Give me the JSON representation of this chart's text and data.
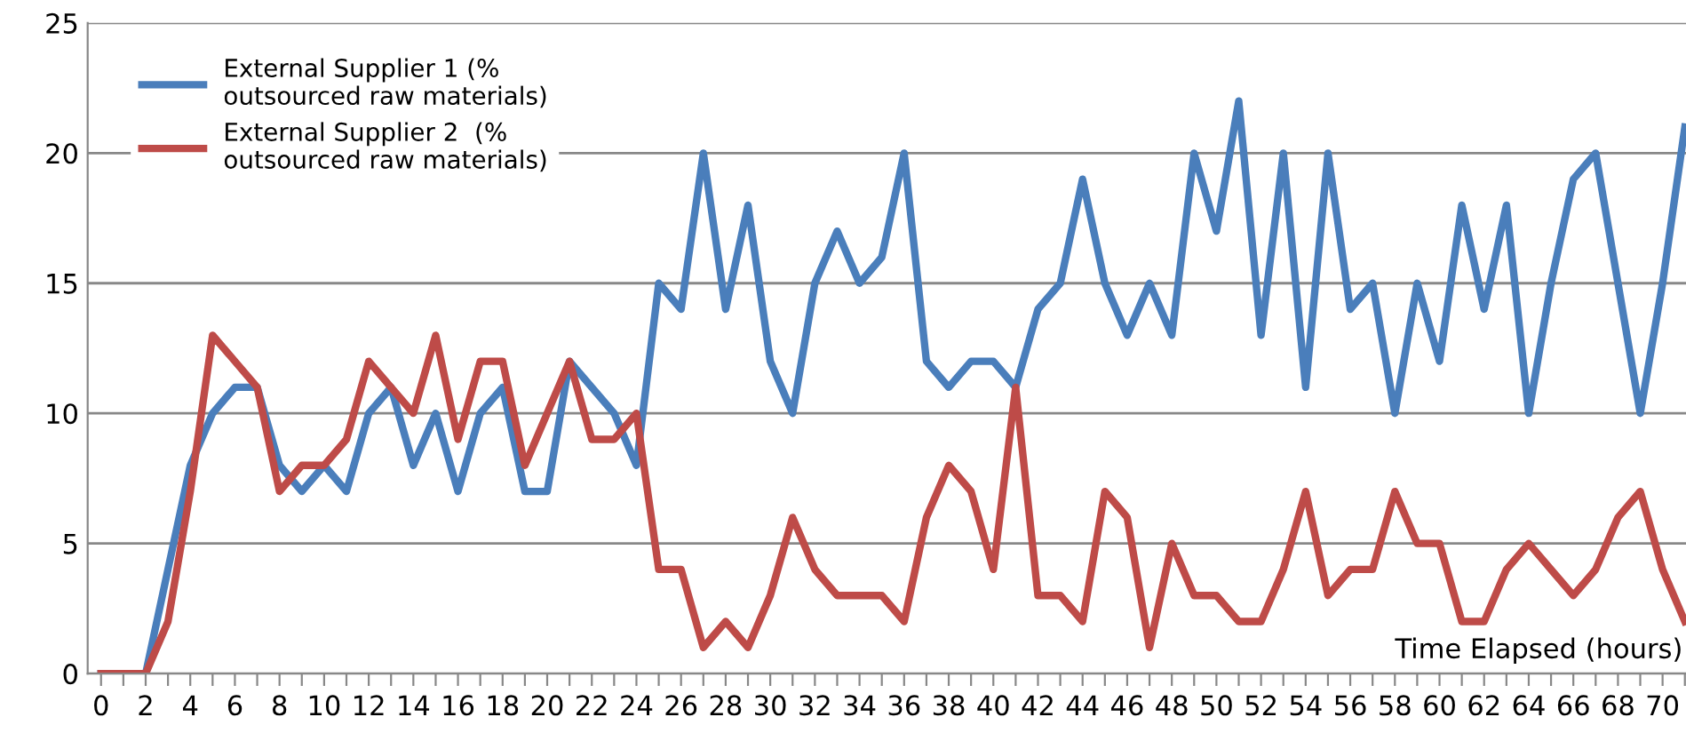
{
  "chart_data": {
    "type": "line",
    "xlabel": "Time Elapsed (hours)",
    "categories": [
      "0",
      null,
      "2",
      null,
      "4",
      null,
      "6",
      null,
      "8",
      null,
      "10",
      null,
      "12",
      null,
      "14",
      null,
      "16",
      null,
      "18",
      null,
      "20",
      null,
      "22",
      null,
      "24",
      null,
      "26",
      null,
      "28",
      null,
      "30",
      null,
      "32",
      null,
      "34",
      null,
      "36",
      null,
      "38",
      null,
      "40",
      null,
      "42",
      null,
      "44",
      null,
      "46",
      null,
      "48",
      null,
      "50",
      null,
      "52",
      null,
      "54",
      null,
      "56",
      null,
      "58",
      null,
      "60",
      null,
      "62",
      null,
      "64",
      null,
      "66",
      null,
      "68",
      null,
      "70",
      null
    ],
    "series": [
      {
        "name": "External Supplier 1 (%\noutsourced raw materials)",
        "color": "#4a7ebb",
        "values": [
          0,
          0,
          0,
          4,
          8,
          10,
          11,
          11,
          8,
          7,
          8,
          7,
          10,
          11,
          8,
          10,
          7,
          10,
          11,
          7,
          7,
          12,
          11,
          10,
          8,
          15,
          14,
          20,
          14,
          18,
          12,
          10,
          15,
          17,
          15,
          16,
          20,
          12,
          11,
          12,
          12,
          11,
          14,
          15,
          19,
          15,
          13,
          15,
          13,
          20,
          17,
          22,
          13,
          20,
          11,
          20,
          14,
          15,
          10,
          15,
          12,
          18,
          14,
          18,
          10,
          15,
          19,
          20,
          15,
          10,
          15,
          21
        ]
      },
      {
        "name": "External Supplier 2  (%\noutsourced raw materials)",
        "color": "#be4b48",
        "values": [
          0,
          0,
          0,
          2,
          7,
          13,
          12,
          11,
          7,
          8,
          8,
          9,
          12,
          11,
          10,
          13,
          9,
          12,
          12,
          8,
          10,
          12,
          9,
          9,
          10,
          4,
          4,
          1,
          2,
          1,
          3,
          6,
          4,
          3,
          3,
          3,
          2,
          6,
          8,
          7,
          4,
          11,
          3,
          3,
          2,
          7,
          6,
          1,
          5,
          3,
          3,
          2,
          2,
          4,
          7,
          3,
          4,
          4,
          7,
          5,
          5,
          2,
          2,
          4,
          5,
          4,
          3,
          4,
          6,
          7,
          4,
          2
        ]
      }
    ],
    "ylim": [
      0,
      25
    ],
    "yticks": [
      0,
      5,
      10,
      15,
      20,
      25
    ],
    "grid": "y",
    "legend": "top left",
    "marker": "none",
    "line_style": "solid"
  }
}
